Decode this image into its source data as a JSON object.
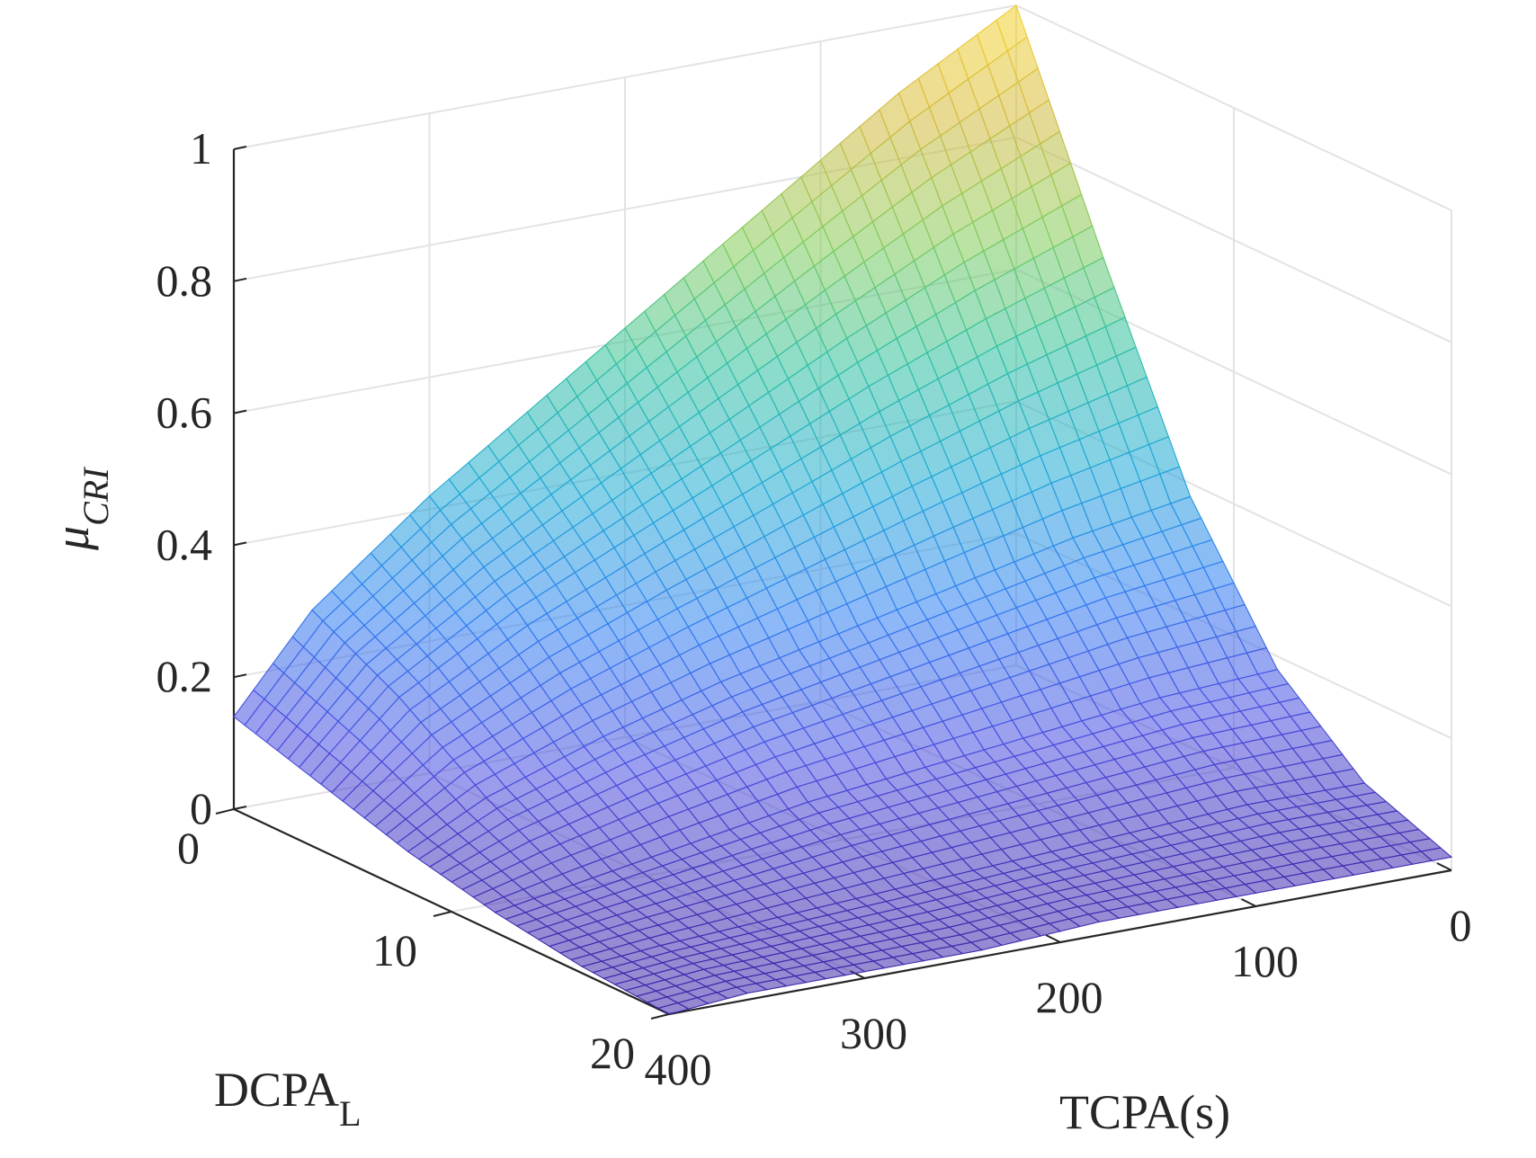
{
  "chart_data": {
    "type": "surface",
    "title": "",
    "xlabel": {
      "main": "DCPA",
      "subscript": "L"
    },
    "ylabel": "TCPA(s)",
    "zlabel": {
      "main": "μ",
      "subscript": "CRI"
    },
    "xlim": [
      0,
      20
    ],
    "ylim": [
      0,
      400
    ],
    "zlim": [
      0,
      1
    ],
    "x_ticks": [
      "0",
      "10",
      "20"
    ],
    "y_ticks": [
      "400",
      "300",
      "200",
      "100",
      "0"
    ],
    "z_ticks": [
      "0",
      "0.2",
      "0.4",
      "0.6",
      "0.8",
      "1"
    ],
    "grid": true,
    "colormap": "parula",
    "colormap_stops": [
      "#3e26a8",
      "#4a4ee0",
      "#2f7ef2",
      "#1ea9d6",
      "#2dc0a0",
      "#81cc59",
      "#d2ba3d",
      "#f9d42a"
    ],
    "surface": {
      "dcpa": [
        0,
        4,
        8,
        12,
        16,
        20
      ],
      "tcpa": [
        0,
        60,
        120,
        180,
        240,
        300,
        360,
        400
      ],
      "mu_cri_by_tcpa": [
        [
          1.0,
          0.68,
          0.38,
          0.18,
          0.07,
          0.02
        ],
        [
          0.9,
          0.62,
          0.35,
          0.17,
          0.07,
          0.02
        ],
        [
          0.78,
          0.55,
          0.31,
          0.15,
          0.06,
          0.02
        ],
        [
          0.66,
          0.47,
          0.27,
          0.13,
          0.05,
          0.02
        ],
        [
          0.54,
          0.39,
          0.23,
          0.11,
          0.04,
          0.01
        ],
        [
          0.42,
          0.31,
          0.18,
          0.08,
          0.03,
          0.01
        ],
        [
          0.28,
          0.21,
          0.12,
          0.05,
          0.02,
          0.01
        ],
        [
          0.14,
          0.1,
          0.06,
          0.03,
          0.01,
          0.0
        ]
      ]
    }
  }
}
